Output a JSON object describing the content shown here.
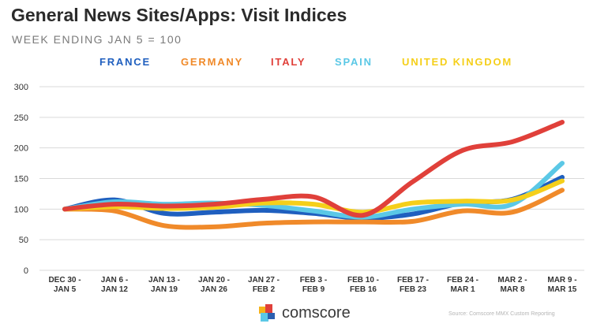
{
  "chart_data": {
    "type": "line",
    "title": "General News Sites/Apps: Visit Indices",
    "subtitle": "WEEK ENDING JAN 5 = 100",
    "xlabel": "",
    "ylabel": "",
    "ylim": [
      0,
      300
    ],
    "yticks": [
      0,
      50,
      100,
      150,
      200,
      250,
      300
    ],
    "grid": true,
    "legend_position": "top",
    "categories": [
      [
        "DEC 30 -",
        "JAN 5"
      ],
      [
        "JAN 6 -",
        "JAN 12"
      ],
      [
        "JAN 13 -",
        "JAN 19"
      ],
      [
        "JAN 20 -",
        "JAN 26"
      ],
      [
        "JAN 27 -",
        "FEB 2"
      ],
      [
        "FEB 3 -",
        "FEB 9"
      ],
      [
        "FEB 10 -",
        "FEB 16"
      ],
      [
        "FEB 17 -",
        "FEB 23"
      ],
      [
        "FEB 24 -",
        "MAR 1"
      ],
      [
        "MAR 2 -",
        "MAR 8"
      ],
      [
        "MAR 9 -",
        "MAR 15"
      ]
    ],
    "series": [
      {
        "name": "FRANCE",
        "color": "#1f5fbf",
        "values": [
          100,
          115,
          93,
          95,
          98,
          93,
          85,
          92,
          110,
          116,
          152
        ]
      },
      {
        "name": "GERMANY",
        "color": "#f08a2a",
        "values": [
          100,
          97,
          73,
          71,
          77,
          79,
          79,
          80,
          97,
          95,
          131
        ]
      },
      {
        "name": "SPAIN",
        "color": "#5bc8e6",
        "values": [
          100,
          112,
          108,
          110,
          106,
          97,
          87,
          100,
          108,
          108,
          175
        ]
      },
      {
        "name": "UNITED KINGDOM",
        "color": "#f5cf1a",
        "values": [
          100,
          104,
          101,
          103,
          110,
          108,
          95,
          110,
          113,
          115,
          146
        ]
      },
      {
        "name": "ITALY",
        "color": "#e0403a",
        "values": [
          100,
          108,
          105,
          108,
          116,
          120,
          90,
          145,
          196,
          210,
          242
        ]
      }
    ]
  },
  "legend": [
    {
      "label": "FRANCE",
      "color": "#1f5fbf"
    },
    {
      "label": "GERMANY",
      "color": "#f08a2a"
    },
    {
      "label": "ITALY",
      "color": "#e0403a"
    },
    {
      "label": "SPAIN",
      "color": "#5bc8e6"
    },
    {
      "label": "UNITED KINGDOM",
      "color": "#f5cf1a"
    }
  ],
  "brand": {
    "name": "comscore",
    "icon": "comscore-logo-icon",
    "colors": [
      "#f5b21a",
      "#e0403a",
      "#5bc8e6",
      "#2b5fb0"
    ]
  },
  "source": "Source: Comscore MMX Custom Reporting"
}
